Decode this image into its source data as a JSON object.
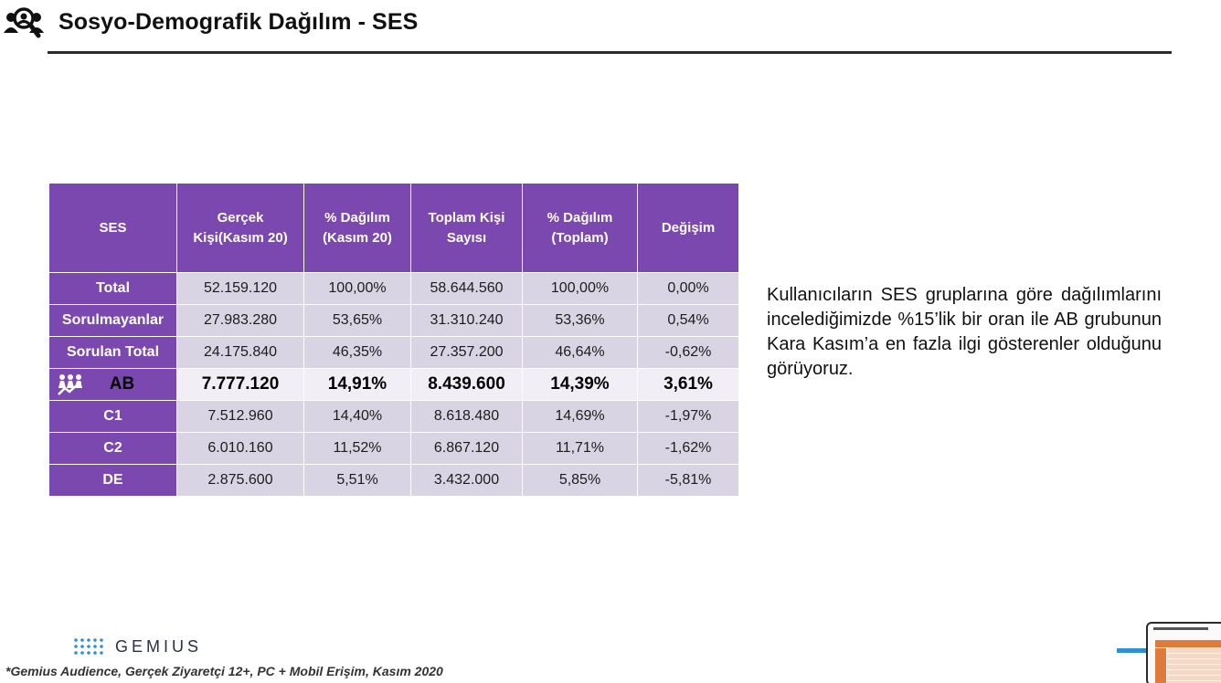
{
  "header": {
    "title": "Sosyo-Demografik Dağılım - SES",
    "icon": "audience-search-icon"
  },
  "table": {
    "columns": [
      "SES",
      "Gerçek Kişi(Kasım 20)",
      "% Dağılım (Kasım 20)",
      "Toplam Kişi Sayısı",
      "% Dağılım (Toplam)",
      "Değişim"
    ],
    "rows": [
      {
        "label": "Total",
        "real_persons": "52.159.120",
        "dist_kasim": "100,00%",
        "total_persons": "58.644.560",
        "dist_total": "100,00%",
        "change": "0,00%"
      },
      {
        "label": "Sorulmayanlar",
        "real_persons": "27.983.280",
        "dist_kasim": "53,65%",
        "total_persons": "31.310.240",
        "dist_total": "53,36%",
        "change": "0,54%"
      },
      {
        "label": "Sorulan Total",
        "real_persons": "24.175.840",
        "dist_kasim": "46,35%",
        "total_persons": "27.357.200",
        "dist_total": "46,64%",
        "change": "-0,62%"
      },
      {
        "label": "AB",
        "real_persons": "7.777.120",
        "dist_kasim": "14,91%",
        "total_persons": "8.439.600",
        "dist_total": "14,39%",
        "change": "3,61%"
      },
      {
        "label": "C1",
        "real_persons": "7.512.960",
        "dist_kasim": "14,40%",
        "total_persons": "8.618.480",
        "dist_total": "14,69%",
        "change": "-1,97%"
      },
      {
        "label": "C2",
        "real_persons": "6.010.160",
        "dist_kasim": "11,52%",
        "total_persons": "6.867.120",
        "dist_total": "11,71%",
        "change": "-1,62%"
      },
      {
        "label": "DE",
        "real_persons": "2.875.600",
        "dist_kasim": "5,51%",
        "total_persons": "3.432.000",
        "dist_total": "5,85%",
        "change": "-5,81%"
      }
    ],
    "highlight_icon": "growth-people-icon"
  },
  "description": "Kullanıcıların SES gruplarına göre dağılımlarını incelediğimizde %15’lik bir oran ile AB grubunun Kara Kasım’a en fazla ilgi gösterenler olduğunu görüyoruz.",
  "logo": {
    "text": "GEMIUS",
    "icon": "gemius-dots-icon"
  },
  "footnote": "*Gemius Audience, Gerçek Ziyaretçi 12+, PC + Mobil Erişim, Kasım 2020",
  "colors": {
    "accent": "#7b48b0",
    "cell": "#d9d4e4",
    "highlight_cell": "#f1eff5",
    "logo_blue": "#2f8fd0"
  }
}
